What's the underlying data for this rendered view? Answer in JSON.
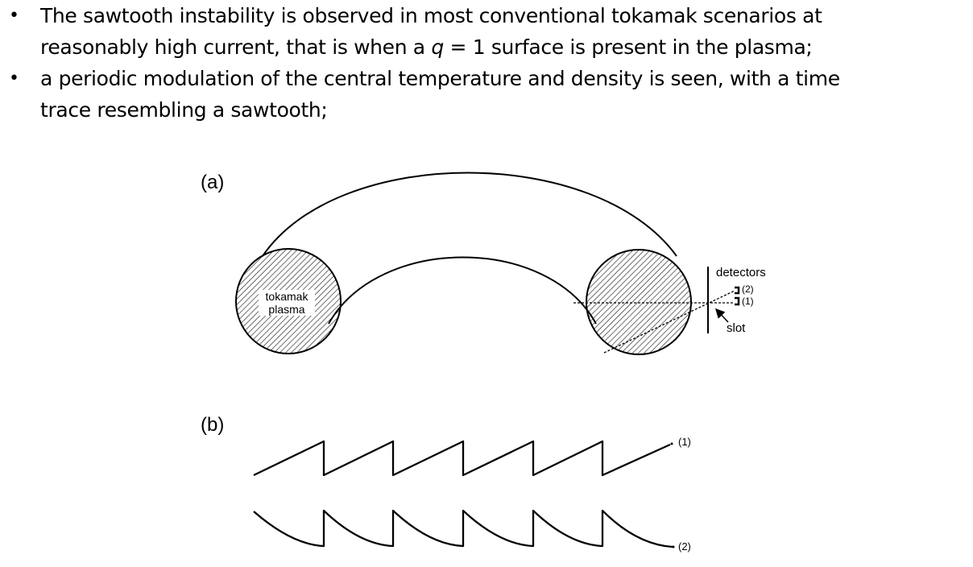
{
  "bullets": [
    {
      "line1": "The sawtooth instability is observed in most conventional tokamak scenarios at",
      "line2_pre": "reasonably high current, that is when a ",
      "line2_q": "q",
      "line2_post": " = 1 surface is present in the plasma;"
    },
    {
      "line1": "a periodic modulation of the central temperature and density is seen, with a time",
      "line2": "trace resembling a sawtooth;"
    }
  ],
  "bullet_symbol": "•",
  "figure": {
    "panel_a_label": "(a)",
    "panel_b_label": "(b)",
    "plasma_label_line1": "tokamak",
    "plasma_label_line2": "plasma",
    "detectors_label": "detectors",
    "detector_2_label": "(2)",
    "detector_1_label": "(1)",
    "slot_label": "slot",
    "trace_1_label": "(1)",
    "trace_2_label": "(2)"
  }
}
